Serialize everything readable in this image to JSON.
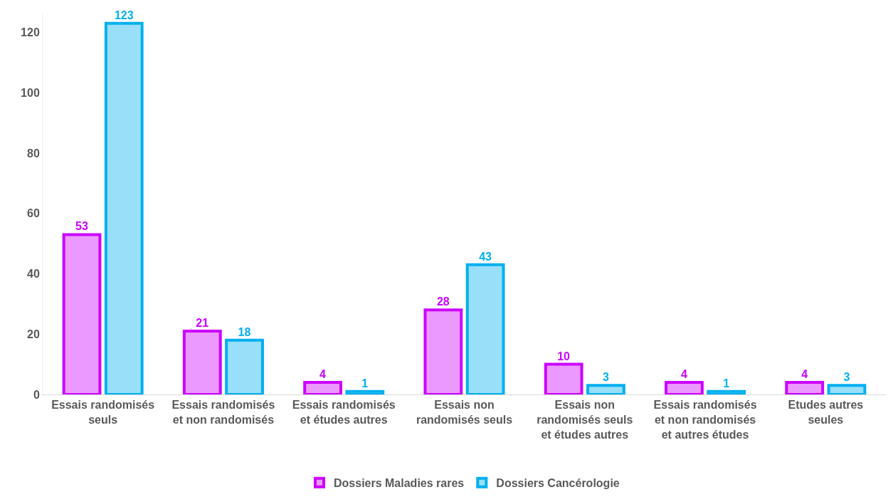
{
  "chart_data": {
    "type": "bar",
    "categories": [
      "Essais randomisés seuls",
      "Essais randomisés et non randomisés",
      "Essais randomisés et études autres",
      "Essais non randomisés seuls",
      "Essais non randomisés seuls et études autres",
      "Essais randomisés et non randomisés et autres études",
      "Etudes autres seules"
    ],
    "series": [
      {
        "name": "Dossiers Maladies rares",
        "color": "#cc00ff",
        "values": [
          53,
          21,
          4,
          28,
          10,
          4,
          4
        ]
      },
      {
        "name": "Dossiers Cancérologie",
        "color": "#00b0f0",
        "values": [
          123,
          18,
          1,
          43,
          3,
          1,
          3
        ]
      }
    ],
    "ylim": [
      0,
      126
    ],
    "yticks": [
      0,
      20,
      40,
      60,
      80,
      100,
      120
    ],
    "data_labels": true,
    "legend": "bottom"
  }
}
